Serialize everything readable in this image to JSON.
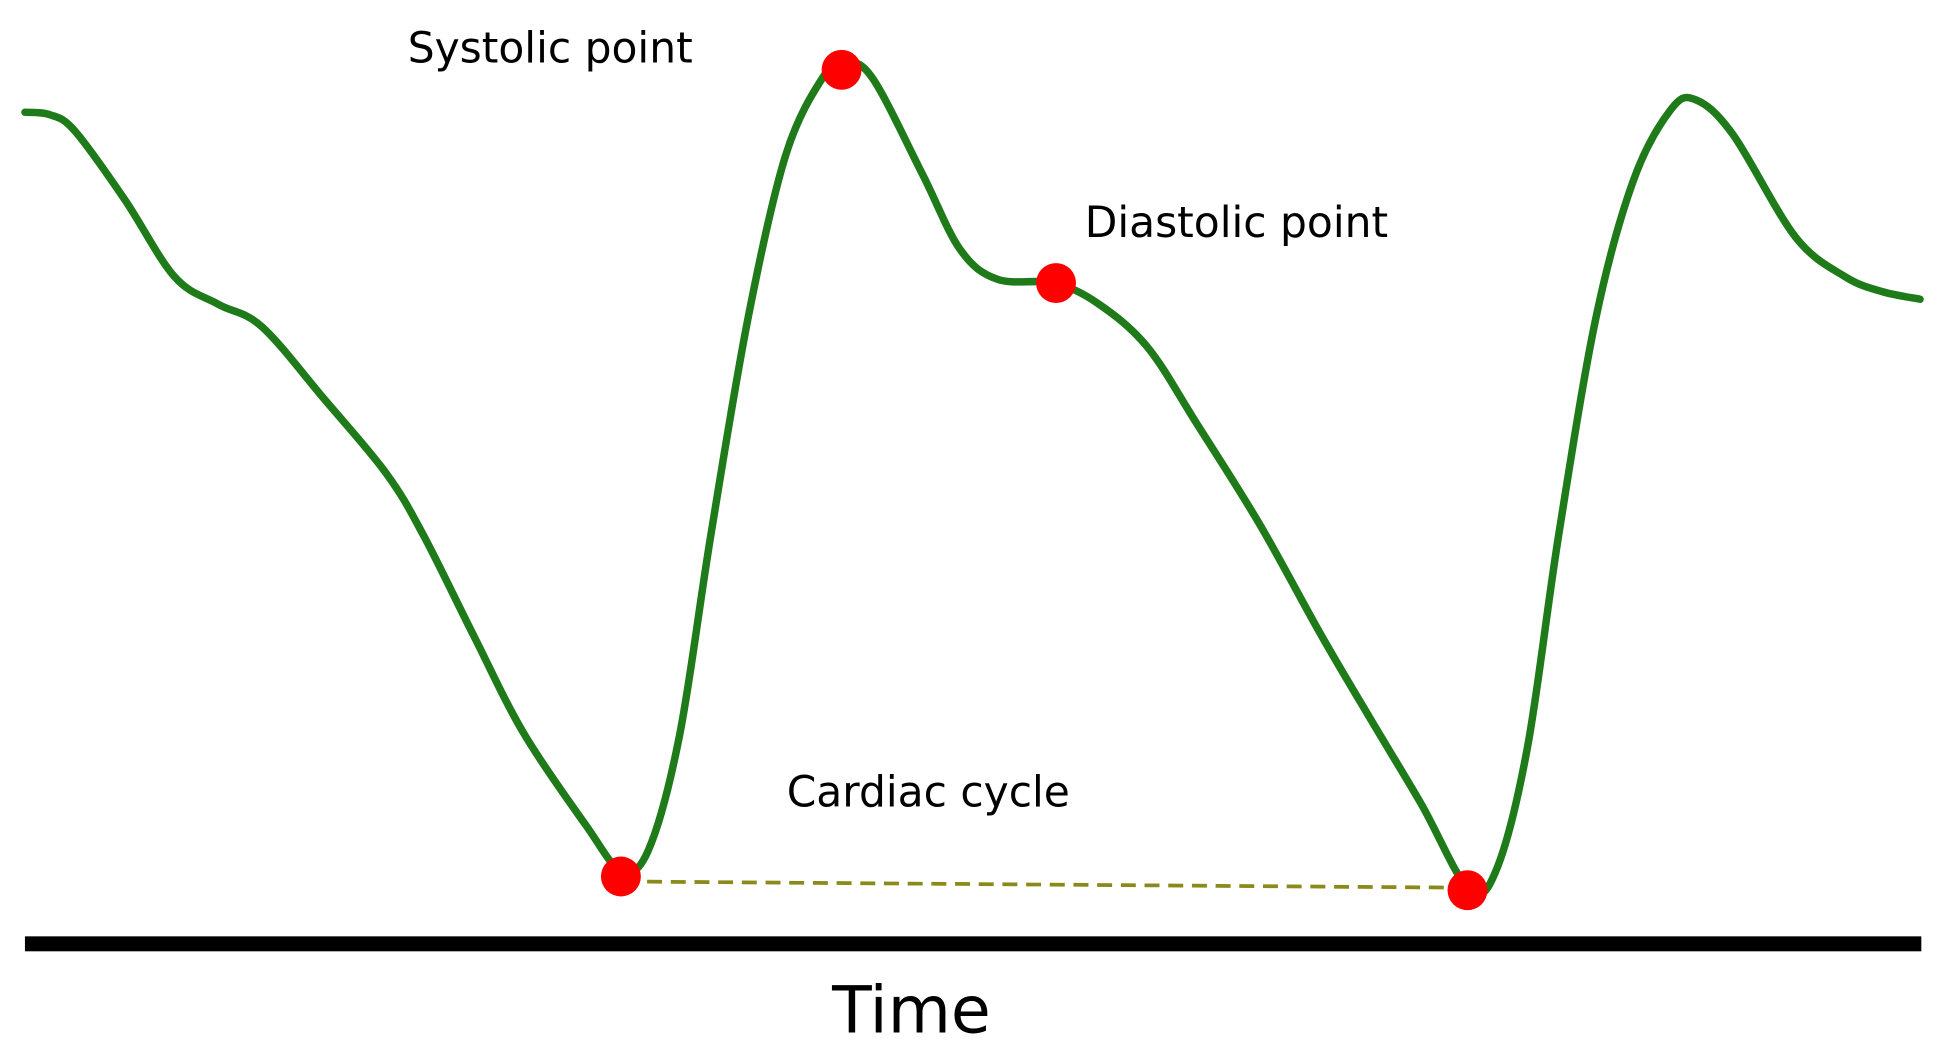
{
  "labels": {
    "systolic": "Systolic point",
    "diastolic": "Diastolic point",
    "cycle": "Cardiac cycle"
  },
  "axis": {
    "label": "Time"
  }
}
